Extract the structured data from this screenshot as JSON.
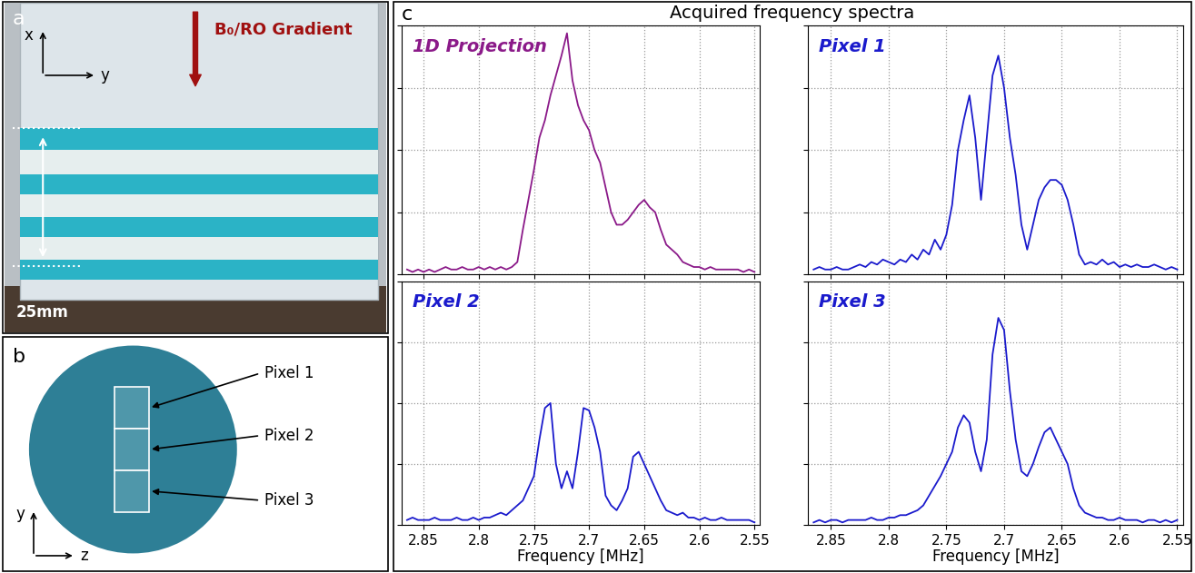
{
  "panel_a": {
    "label": "a",
    "axis_labels": [
      "x",
      "y"
    ],
    "arrow_label": "B₀/RO Gradient",
    "dimension": "25mm"
  },
  "panel_b": {
    "label": "b",
    "axis_labels": [
      "y",
      "z"
    ],
    "pixels": [
      "Pixel 1",
      "Pixel 2",
      "Pixel 3"
    ]
  },
  "panel_c": {
    "label": "c",
    "title": "Acquired frequency spectra"
  },
  "chart_data": [
    {
      "type": "line",
      "title": "1D Projection",
      "color": "#8b1a89",
      "x": [
        2.865,
        2.86,
        2.855,
        2.85,
        2.845,
        2.84,
        2.835,
        2.83,
        2.825,
        2.82,
        2.815,
        2.81,
        2.805,
        2.8,
        2.795,
        2.79,
        2.785,
        2.78,
        2.775,
        2.77,
        2.765,
        2.76,
        2.755,
        2.75,
        2.745,
        2.74,
        2.735,
        2.73,
        2.725,
        2.72,
        2.715,
        2.71,
        2.705,
        2.7,
        2.695,
        2.69,
        2.685,
        2.68,
        2.675,
        2.67,
        2.665,
        2.66,
        2.655,
        2.65,
        2.645,
        2.64,
        2.635,
        2.63,
        2.625,
        2.62,
        2.615,
        2.61,
        2.605,
        2.6,
        2.595,
        2.59,
        2.585,
        2.58,
        2.575,
        2.57,
        2.565,
        2.56,
        2.555,
        2.55
      ],
      "values": [
        0.02,
        0.01,
        0.02,
        0.01,
        0.02,
        0.01,
        0.02,
        0.03,
        0.02,
        0.02,
        0.03,
        0.02,
        0.02,
        0.03,
        0.02,
        0.03,
        0.02,
        0.03,
        0.02,
        0.03,
        0.05,
        0.18,
        0.3,
        0.42,
        0.55,
        0.62,
        0.72,
        0.8,
        0.88,
        0.97,
        0.78,
        0.68,
        0.62,
        0.58,
        0.5,
        0.45,
        0.35,
        0.25,
        0.2,
        0.2,
        0.22,
        0.25,
        0.28,
        0.3,
        0.27,
        0.25,
        0.18,
        0.12,
        0.1,
        0.08,
        0.05,
        0.04,
        0.03,
        0.03,
        0.02,
        0.03,
        0.02,
        0.02,
        0.02,
        0.02,
        0.02,
        0.01,
        0.02,
        0.01
      ],
      "xlim": [
        2.87,
        2.545
      ],
      "xticks": [
        2.85,
        2.8,
        2.75,
        2.7,
        2.65,
        2.6,
        2.55
      ],
      "ylim": [
        0,
        1
      ],
      "yticks": [
        0,
        0.25,
        0.5,
        0.75,
        1
      ],
      "grid": true,
      "tick_labels": false
    },
    {
      "type": "line",
      "title": "Pixel 1",
      "color": "#1a1acc",
      "x": [
        2.865,
        2.86,
        2.855,
        2.85,
        2.845,
        2.84,
        2.835,
        2.83,
        2.825,
        2.82,
        2.815,
        2.81,
        2.805,
        2.8,
        2.795,
        2.79,
        2.785,
        2.78,
        2.775,
        2.77,
        2.765,
        2.76,
        2.755,
        2.75,
        2.745,
        2.74,
        2.735,
        2.73,
        2.725,
        2.72,
        2.715,
        2.71,
        2.705,
        2.7,
        2.695,
        2.69,
        2.685,
        2.68,
        2.675,
        2.67,
        2.665,
        2.66,
        2.655,
        2.65,
        2.645,
        2.64,
        2.635,
        2.63,
        2.625,
        2.62,
        2.615,
        2.61,
        2.605,
        2.6,
        2.595,
        2.59,
        2.585,
        2.58,
        2.575,
        2.57,
        2.565,
        2.56,
        2.555,
        2.55
      ],
      "values": [
        0.02,
        0.03,
        0.02,
        0.02,
        0.03,
        0.02,
        0.02,
        0.03,
        0.04,
        0.03,
        0.05,
        0.04,
        0.06,
        0.05,
        0.04,
        0.06,
        0.05,
        0.08,
        0.06,
        0.1,
        0.08,
        0.14,
        0.1,
        0.16,
        0.28,
        0.5,
        0.62,
        0.72,
        0.55,
        0.3,
        0.55,
        0.8,
        0.88,
        0.75,
        0.55,
        0.4,
        0.2,
        0.1,
        0.2,
        0.3,
        0.35,
        0.38,
        0.38,
        0.36,
        0.3,
        0.2,
        0.08,
        0.04,
        0.05,
        0.04,
        0.06,
        0.04,
        0.05,
        0.03,
        0.04,
        0.03,
        0.04,
        0.03,
        0.03,
        0.04,
        0.03,
        0.02,
        0.03,
        0.02
      ],
      "xlim": [
        2.87,
        2.545
      ],
      "xticks": [
        2.85,
        2.8,
        2.75,
        2.7,
        2.65,
        2.6,
        2.55
      ],
      "ylim": [
        0,
        1
      ],
      "yticks": [
        0,
        0.25,
        0.5,
        0.75,
        1
      ],
      "grid": true,
      "tick_labels": false
    },
    {
      "type": "line",
      "title": "Pixel 2",
      "color": "#1a1acc",
      "x_label": "Frequency [MHz]",
      "x": [
        2.865,
        2.86,
        2.855,
        2.85,
        2.845,
        2.84,
        2.835,
        2.83,
        2.825,
        2.82,
        2.815,
        2.81,
        2.805,
        2.8,
        2.795,
        2.79,
        2.785,
        2.78,
        2.775,
        2.77,
        2.765,
        2.76,
        2.755,
        2.75,
        2.745,
        2.74,
        2.735,
        2.73,
        2.725,
        2.72,
        2.715,
        2.71,
        2.705,
        2.7,
        2.695,
        2.69,
        2.685,
        2.68,
        2.675,
        2.67,
        2.665,
        2.66,
        2.655,
        2.65,
        2.645,
        2.64,
        2.635,
        2.63,
        2.625,
        2.62,
        2.615,
        2.61,
        2.605,
        2.6,
        2.595,
        2.59,
        2.585,
        2.58,
        2.575,
        2.57,
        2.565,
        2.56,
        2.555,
        2.55
      ],
      "values": [
        0.02,
        0.03,
        0.02,
        0.02,
        0.02,
        0.03,
        0.02,
        0.02,
        0.02,
        0.03,
        0.02,
        0.02,
        0.03,
        0.02,
        0.03,
        0.03,
        0.04,
        0.05,
        0.04,
        0.06,
        0.08,
        0.1,
        0.15,
        0.2,
        0.35,
        0.48,
        0.5,
        0.25,
        0.15,
        0.22,
        0.15,
        0.3,
        0.48,
        0.47,
        0.4,
        0.3,
        0.12,
        0.08,
        0.06,
        0.1,
        0.15,
        0.28,
        0.3,
        0.25,
        0.2,
        0.15,
        0.1,
        0.06,
        0.05,
        0.04,
        0.05,
        0.03,
        0.03,
        0.02,
        0.03,
        0.02,
        0.02,
        0.03,
        0.02,
        0.02,
        0.02,
        0.02,
        0.02,
        0.01
      ],
      "xlim": [
        2.87,
        2.545
      ],
      "xticks": [
        2.85,
        2.8,
        2.75,
        2.7,
        2.65,
        2.6,
        2.55
      ],
      "ylim": [
        0,
        1
      ],
      "yticks": [
        0,
        0.25,
        0.5,
        0.75,
        1
      ],
      "grid": true,
      "tick_labels": "x"
    },
    {
      "type": "line",
      "title": "Pixel 3",
      "color": "#1a1acc",
      "x_label": "Frequency [MHz]",
      "x": [
        2.865,
        2.86,
        2.855,
        2.85,
        2.845,
        2.84,
        2.835,
        2.83,
        2.825,
        2.82,
        2.815,
        2.81,
        2.805,
        2.8,
        2.795,
        2.79,
        2.785,
        2.78,
        2.775,
        2.77,
        2.765,
        2.76,
        2.755,
        2.75,
        2.745,
        2.74,
        2.735,
        2.73,
        2.725,
        2.72,
        2.715,
        2.71,
        2.705,
        2.7,
        2.695,
        2.69,
        2.685,
        2.68,
        2.675,
        2.67,
        2.665,
        2.66,
        2.655,
        2.65,
        2.645,
        2.64,
        2.635,
        2.63,
        2.625,
        2.62,
        2.615,
        2.61,
        2.605,
        2.6,
        2.595,
        2.59,
        2.585,
        2.58,
        2.575,
        2.57,
        2.565,
        2.56,
        2.555,
        2.55
      ],
      "values": [
        0.01,
        0.02,
        0.01,
        0.02,
        0.02,
        0.01,
        0.02,
        0.02,
        0.02,
        0.02,
        0.03,
        0.02,
        0.02,
        0.03,
        0.03,
        0.04,
        0.04,
        0.05,
        0.06,
        0.08,
        0.12,
        0.16,
        0.2,
        0.25,
        0.3,
        0.4,
        0.45,
        0.42,
        0.3,
        0.22,
        0.35,
        0.7,
        0.85,
        0.8,
        0.55,
        0.35,
        0.22,
        0.2,
        0.25,
        0.32,
        0.38,
        0.4,
        0.35,
        0.3,
        0.25,
        0.15,
        0.08,
        0.05,
        0.04,
        0.03,
        0.03,
        0.02,
        0.02,
        0.03,
        0.02,
        0.02,
        0.02,
        0.01,
        0.02,
        0.02,
        0.01,
        0.02,
        0.01,
        0.02
      ],
      "xlim": [
        2.87,
        2.545
      ],
      "xticks": [
        2.85,
        2.8,
        2.75,
        2.7,
        2.65,
        2.6,
        2.55
      ],
      "ylim": [
        0,
        1
      ],
      "yticks": [
        0,
        0.25,
        0.5,
        0.75,
        1
      ],
      "grid": true,
      "tick_labels": "x"
    }
  ]
}
